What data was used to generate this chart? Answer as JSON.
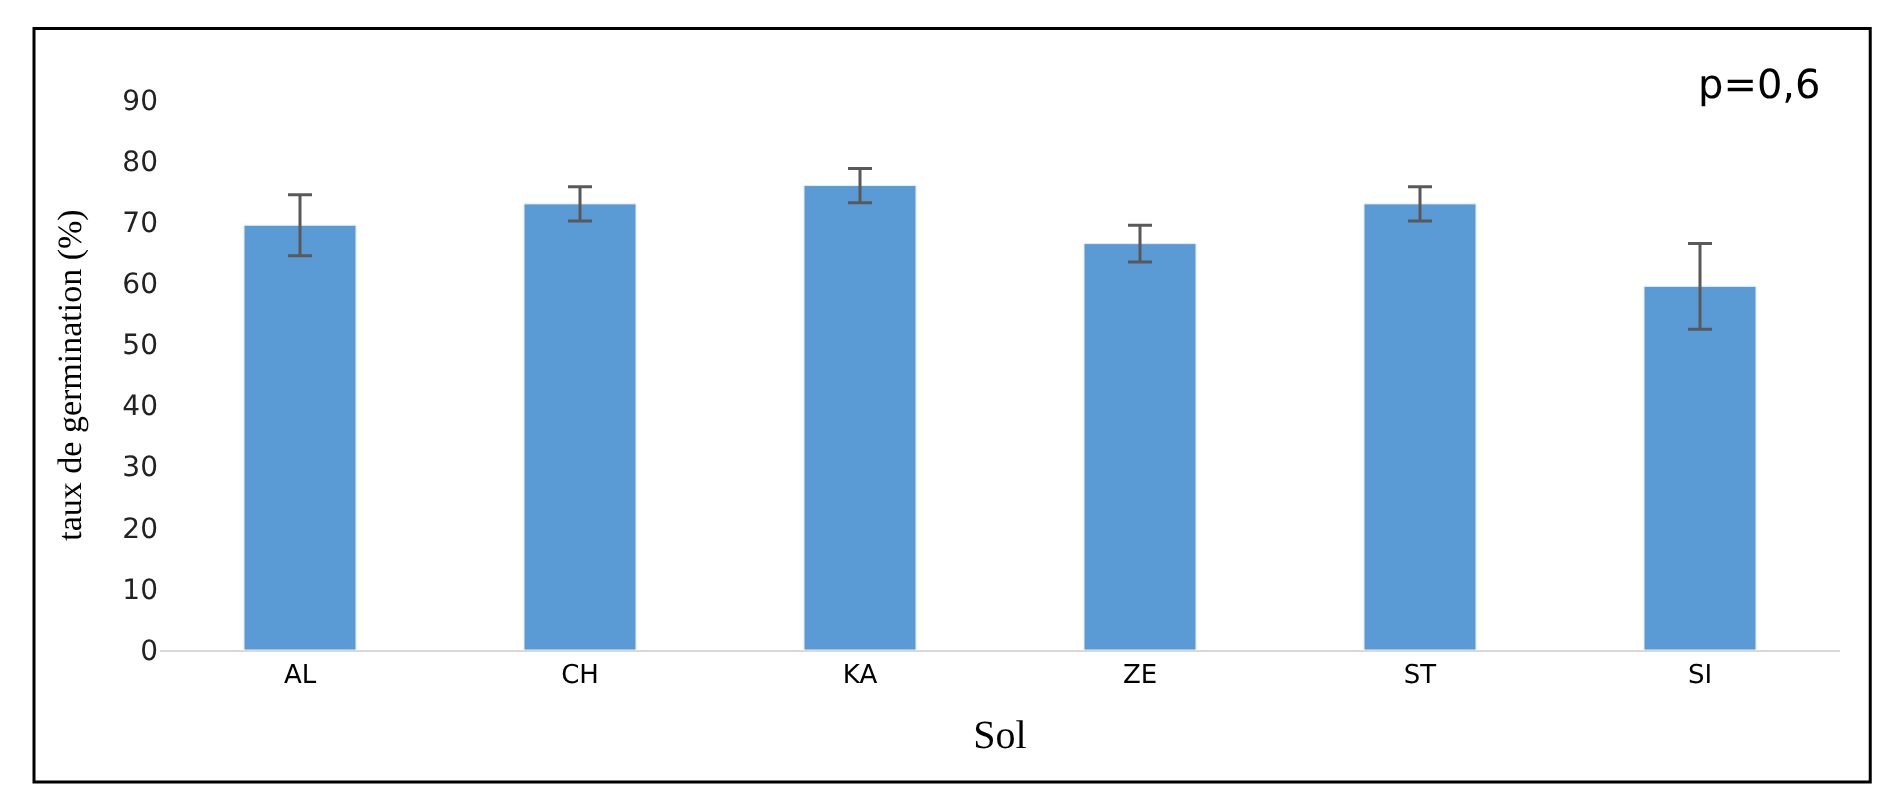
{
  "chart_data": {
    "type": "bar",
    "xlabel": "Sol",
    "ylabel": "taux de germination (%)",
    "categories": [
      "AL",
      "CH",
      "KA",
      "ZE",
      "ST",
      "SI"
    ],
    "values": [
      69.5,
      73,
      76,
      66.5,
      73,
      59.5
    ],
    "errors": [
      5,
      2.8,
      2.8,
      3,
      2.8,
      7
    ],
    "color": "#5b9bd5",
    "ylim": [
      0,
      90
    ],
    "yticks": [
      0,
      10,
      20,
      30,
      40,
      50,
      60,
      70,
      80,
      90
    ],
    "annotations": [
      "p=0,6"
    ]
  }
}
